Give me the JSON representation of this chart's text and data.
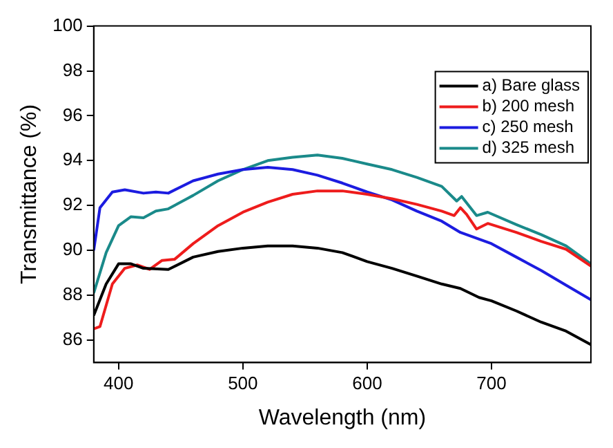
{
  "chart_data": {
    "type": "line",
    "xlabel": "Wavelength (nm)",
    "ylabel": "Transmittance (%)",
    "xlim": [
      380,
      780
    ],
    "xticks": [
      400,
      500,
      600,
      700
    ],
    "ylim": [
      85,
      100
    ],
    "yticks": [
      86,
      88,
      90,
      92,
      94,
      96,
      98,
      100
    ],
    "grid": false,
    "legend": "top right",
    "marker": "none",
    "line_style": "solid",
    "series": [
      {
        "name": "a) Bare glass",
        "color": "#000000",
        "x": [
          380,
          390,
          400,
          410,
          420,
          440,
          460,
          480,
          500,
          520,
          540,
          560,
          580,
          600,
          620,
          640,
          660,
          675,
          690,
          700,
          720,
          740,
          760,
          780
        ],
        "values": [
          87.1,
          88.5,
          89.4,
          89.4,
          89.2,
          89.15,
          89.7,
          89.95,
          90.1,
          90.2,
          90.2,
          90.1,
          89.9,
          89.5,
          89.2,
          88.85,
          88.5,
          88.3,
          87.9,
          87.75,
          87.3,
          86.8,
          86.4,
          85.8
        ]
      },
      {
        "name": "b) 200 mesh",
        "color": "#ee1c1c",
        "x": [
          380,
          385,
          395,
          405,
          415,
          425,
          435,
          445,
          460,
          480,
          500,
          520,
          540,
          560,
          580,
          600,
          620,
          640,
          660,
          670,
          675,
          680,
          688,
          697,
          720,
          740,
          760,
          780
        ],
        "values": [
          86.5,
          86.6,
          88.5,
          89.2,
          89.35,
          89.15,
          89.55,
          89.6,
          90.3,
          91.1,
          91.7,
          92.15,
          92.5,
          92.65,
          92.65,
          92.5,
          92.3,
          92.05,
          91.75,
          91.55,
          91.9,
          91.6,
          90.95,
          91.2,
          90.8,
          90.4,
          90.05,
          89.3
        ]
      },
      {
        "name": "c) 250 mesh",
        "color": "#1c1ce0",
        "x": [
          380,
          385,
          395,
          405,
          420,
          430,
          440,
          460,
          480,
          500,
          520,
          540,
          560,
          580,
          600,
          620,
          640,
          660,
          675,
          690,
          700,
          720,
          740,
          760,
          780
        ],
        "values": [
          90.0,
          91.9,
          92.6,
          92.7,
          92.55,
          92.6,
          92.55,
          93.1,
          93.4,
          93.6,
          93.7,
          93.6,
          93.35,
          93.0,
          92.6,
          92.25,
          91.75,
          91.3,
          90.8,
          90.5,
          90.3,
          89.7,
          89.1,
          88.45,
          87.8
        ]
      },
      {
        "name": "d) 325 mesh",
        "color": "#1a8a8a",
        "x": [
          380,
          390,
          400,
          410,
          420,
          430,
          440,
          455,
          460,
          480,
          500,
          520,
          540,
          560,
          580,
          600,
          620,
          640,
          660,
          672,
          676,
          688,
          697,
          720,
          740,
          760,
          780
        ],
        "values": [
          88.1,
          89.9,
          91.1,
          91.5,
          91.45,
          91.75,
          91.85,
          92.3,
          92.45,
          93.1,
          93.6,
          94.0,
          94.15,
          94.25,
          94.1,
          93.85,
          93.6,
          93.25,
          92.85,
          92.2,
          92.4,
          91.55,
          91.7,
          91.15,
          90.7,
          90.2,
          89.4
        ]
      }
    ]
  }
}
